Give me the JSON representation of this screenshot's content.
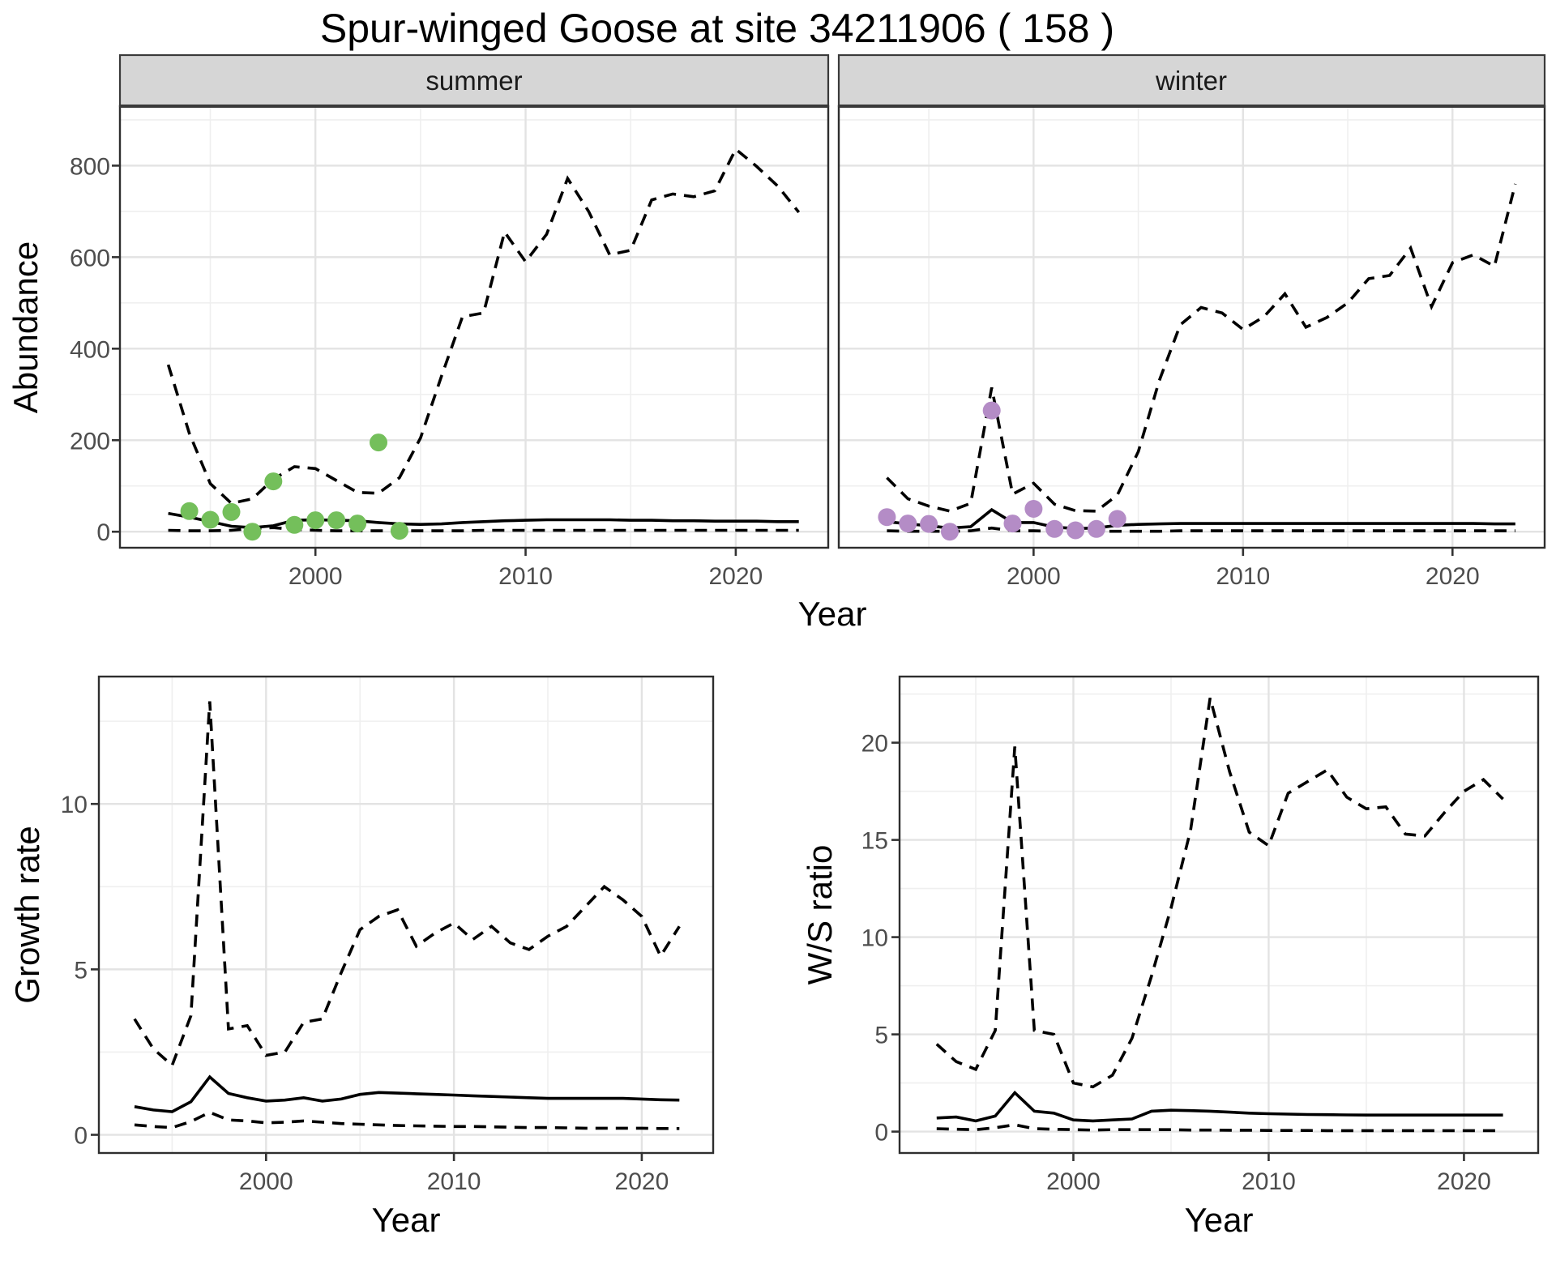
{
  "title": "Spur-winged Goose at site 34211906 ( 158 )",
  "chart_data": [
    {
      "type": "line",
      "id": "abundance-summer",
      "facet_label": "summer",
      "xlabel": "Year",
      "ylabel": "Abundance",
      "xlim": [
        1990.7,
        2024.4
      ],
      "ylim": [
        -35,
        930
      ],
      "x_ticks": [
        2000,
        2010,
        2020
      ],
      "x_minor": [
        1995,
        2005,
        2015
      ],
      "y_ticks": [
        0,
        200,
        400,
        600,
        800
      ],
      "y_minor": [
        100,
        300,
        500,
        700,
        900
      ],
      "grid": true,
      "legend": "none",
      "x": [
        1993,
        1994,
        1995,
        1996,
        1997,
        1998,
        1999,
        2000,
        2001,
        2002,
        2003,
        2004,
        2005,
        2006,
        2007,
        2008,
        2009,
        2010,
        2011,
        2012,
        2013,
        2014,
        2015,
        2016,
        2017,
        2018,
        2019,
        2020,
        2021,
        2022,
        2023
      ],
      "series": [
        {
          "name": "upper-credible-limit",
          "style": "dashed",
          "values": [
            365,
            215,
            105,
            62,
            72,
            115,
            142,
            138,
            112,
            86,
            84,
            118,
            205,
            340,
            470,
            478,
            655,
            590,
            650,
            772,
            700,
            605,
            615,
            725,
            738,
            732,
            745,
            836,
            798,
            755,
            698
          ]
        },
        {
          "name": "median-model-estimate",
          "style": "solid",
          "values": [
            40,
            32,
            22,
            12,
            9,
            13,
            25,
            26,
            25,
            24,
            20,
            17,
            16,
            17,
            20,
            22,
            24,
            25,
            26,
            26,
            26,
            26,
            25,
            25,
            24,
            24,
            23,
            23,
            23,
            22,
            22
          ]
        },
        {
          "name": "lower-credible-limit",
          "style": "dashed",
          "values": [
            3,
            2,
            2,
            3,
            7,
            9,
            5,
            3,
            2,
            2,
            2,
            2,
            2,
            2,
            2,
            3,
            3,
            3,
            3,
            3,
            3,
            3,
            3,
            3,
            3,
            3,
            3,
            3,
            3,
            3,
            3
          ]
        }
      ],
      "points": {
        "name": "observed-summer-counts",
        "color": "#74BF5B",
        "x": [
          1994,
          1995,
          1996,
          1997,
          1998,
          1999,
          2000,
          2001,
          2002,
          2003,
          2004
        ],
        "values": [
          45,
          26,
          43,
          0,
          110,
          15,
          25,
          25,
          18,
          195,
          2
        ]
      }
    },
    {
      "type": "line",
      "id": "abundance-winter",
      "facet_label": "winter",
      "xlabel": "Year",
      "ylabel": "Abundance",
      "xlim": [
        1990.7,
        2024.4
      ],
      "ylim": [
        -35,
        930
      ],
      "x_ticks": [
        2000,
        2010,
        2020
      ],
      "x_minor": [
        1995,
        2005,
        2015
      ],
      "y_ticks": [
        0,
        200,
        400,
        600,
        800
      ],
      "y_minor": [
        100,
        300,
        500,
        700,
        900
      ],
      "grid": true,
      "legend": "none",
      "x": [
        1993,
        1994,
        1995,
        1996,
        1997,
        1998,
        1999,
        2000,
        2001,
        2002,
        2003,
        2004,
        2005,
        2006,
        2007,
        2008,
        2009,
        2010,
        2011,
        2012,
        2013,
        2014,
        2015,
        2016,
        2017,
        2018,
        2019,
        2020,
        2021,
        2022,
        2023
      ],
      "series": [
        {
          "name": "upper-credible-limit",
          "style": "dashed",
          "values": [
            118,
            72,
            56,
            45,
            62,
            315,
            82,
            106,
            60,
            46,
            45,
            80,
            175,
            330,
            452,
            490,
            478,
            442,
            470,
            520,
            447,
            468,
            500,
            553,
            560,
            620,
            492,
            588,
            605,
            580,
            760
          ]
        },
        {
          "name": "median-model-estimate",
          "style": "solid",
          "values": [
            22,
            17,
            13,
            8,
            11,
            48,
            20,
            20,
            10,
            7,
            8,
            14,
            16,
            17,
            18,
            18,
            18,
            18,
            18,
            18,
            18,
            18,
            18,
            18,
            18,
            18,
            18,
            18,
            18,
            17,
            17
          ]
        },
        {
          "name": "lower-credible-limit",
          "style": "dashed",
          "values": [
            2,
            1,
            1,
            1,
            2,
            8,
            2,
            2,
            1,
            1,
            1,
            1,
            1,
            1,
            2,
            2,
            2,
            2,
            2,
            2,
            2,
            2,
            2,
            2,
            2,
            2,
            2,
            2,
            2,
            2,
            2
          ]
        }
      ],
      "points": {
        "name": "observed-winter-counts",
        "color": "#B48CC6",
        "x": [
          1993,
          1994,
          1995,
          1996,
          1998,
          1999,
          2000,
          2001,
          2002,
          2003,
          2004
        ],
        "values": [
          32,
          18,
          17,
          0,
          265,
          18,
          50,
          6,
          3,
          6,
          28
        ]
      }
    },
    {
      "type": "line",
      "id": "growth-rate",
      "facet_label": "",
      "xlabel": "Year",
      "ylabel": "Growth rate",
      "xlim": [
        1991.1,
        2023.8
      ],
      "ylim": [
        -0.55,
        13.85
      ],
      "x_ticks": [
        2000,
        2010,
        2020
      ],
      "x_minor": [
        1995,
        2005,
        2015
      ],
      "y_ticks": [
        0,
        5,
        10
      ],
      "y_minor": [
        2.5,
        7.5,
        12.5
      ],
      "grid": true,
      "legend": "none",
      "x": [
        1993,
        1994,
        1995,
        1996,
        1997,
        1998,
        1999,
        2000,
        2001,
        2002,
        2003,
        2004,
        2005,
        2006,
        2007,
        2008,
        2009,
        2010,
        2011,
        2012,
        2013,
        2014,
        2015,
        2016,
        2017,
        2018,
        2019,
        2020,
        2021,
        2022
      ],
      "series": [
        {
          "name": "upper-credible-limit",
          "style": "dashed",
          "values": [
            3.5,
            2.6,
            2.1,
            3.6,
            13.1,
            3.2,
            3.3,
            2.4,
            2.5,
            3.4,
            3.5,
            4.9,
            6.2,
            6.6,
            6.8,
            5.7,
            6.1,
            6.4,
            5.9,
            6.3,
            5.8,
            5.6,
            6.0,
            6.3,
            6.9,
            7.5,
            7.1,
            6.6,
            5.4,
            6.3
          ]
        },
        {
          "name": "median-model-estimate",
          "style": "solid",
          "values": [
            0.85,
            0.75,
            0.7,
            1.0,
            1.75,
            1.25,
            1.12,
            1.02,
            1.05,
            1.12,
            1.02,
            1.08,
            1.22,
            1.28,
            1.26,
            1.24,
            1.22,
            1.2,
            1.18,
            1.16,
            1.14,
            1.12,
            1.1,
            1.1,
            1.1,
            1.1,
            1.1,
            1.08,
            1.06,
            1.05
          ]
        },
        {
          "name": "lower-credible-limit",
          "style": "dashed",
          "values": [
            0.3,
            0.25,
            0.22,
            0.4,
            0.68,
            0.45,
            0.42,
            0.36,
            0.38,
            0.42,
            0.38,
            0.34,
            0.32,
            0.3,
            0.28,
            0.27,
            0.26,
            0.25,
            0.25,
            0.24,
            0.23,
            0.22,
            0.22,
            0.21,
            0.2,
            0.2,
            0.2,
            0.2,
            0.19,
            0.19
          ]
        }
      ],
      "points": null
    },
    {
      "type": "line",
      "id": "ws-ratio",
      "facet_label": "",
      "xlabel": "Year",
      "ylabel": "W/S ratio",
      "xlim": [
        1991.1,
        2023.8
      ],
      "ylim": [
        -1.1,
        23.4
      ],
      "x_ticks": [
        2000,
        2010,
        2020
      ],
      "x_minor": [
        1995,
        2005,
        2015
      ],
      "y_ticks": [
        0,
        5,
        10,
        15,
        20
      ],
      "y_minor": [
        2.5,
        7.5,
        12.5,
        17.5,
        22.5
      ],
      "grid": true,
      "legend": "none",
      "x": [
        1993,
        1994,
        1995,
        1996,
        1997,
        1998,
        1999,
        2000,
        2001,
        2002,
        2003,
        2004,
        2005,
        2006,
        2007,
        2008,
        2009,
        2010,
        2011,
        2012,
        2013,
        2014,
        2015,
        2016,
        2017,
        2018,
        2019,
        2020,
        2021,
        2022
      ],
      "series": [
        {
          "name": "upper-credible-limit",
          "style": "dashed",
          "values": [
            4.5,
            3.6,
            3.2,
            5.2,
            19.8,
            5.2,
            5.0,
            2.5,
            2.3,
            2.9,
            4.8,
            8.0,
            11.5,
            15.5,
            22.3,
            18.5,
            15.4,
            14.7,
            17.4,
            18.0,
            18.6,
            17.2,
            16.6,
            16.7,
            15.3,
            15.2,
            16.4,
            17.5,
            18.1,
            17.1
          ]
        },
        {
          "name": "median-model-estimate",
          "style": "solid",
          "values": [
            0.7,
            0.75,
            0.55,
            0.8,
            2.0,
            1.05,
            0.95,
            0.6,
            0.55,
            0.6,
            0.65,
            1.05,
            1.1,
            1.08,
            1.05,
            1.0,
            0.95,
            0.92,
            0.9,
            0.88,
            0.87,
            0.86,
            0.85,
            0.85,
            0.85,
            0.85,
            0.85,
            0.85,
            0.85,
            0.85
          ]
        },
        {
          "name": "lower-credible-limit",
          "style": "dashed",
          "values": [
            0.15,
            0.12,
            0.1,
            0.2,
            0.35,
            0.15,
            0.12,
            0.1,
            0.08,
            0.1,
            0.1,
            0.1,
            0.1,
            0.08,
            0.08,
            0.07,
            0.07,
            0.06,
            0.06,
            0.06,
            0.05,
            0.05,
            0.05,
            0.05,
            0.05,
            0.05,
            0.05,
            0.05,
            0.05,
            0.05
          ]
        }
      ],
      "points": null
    }
  ],
  "style": {
    "strip_fill": "#d6d6d6",
    "strip_border": "#3a3a3a",
    "panel_border": "#2e2e2e",
    "grid_major": "#e3e3e3",
    "grid_minor": "#efefef",
    "tick_color": "#333333",
    "tick_label_color": "#4d4d4d",
    "line_color": "#000000",
    "point_green": "#74BF5B",
    "point_purple": "#B48CC6"
  }
}
